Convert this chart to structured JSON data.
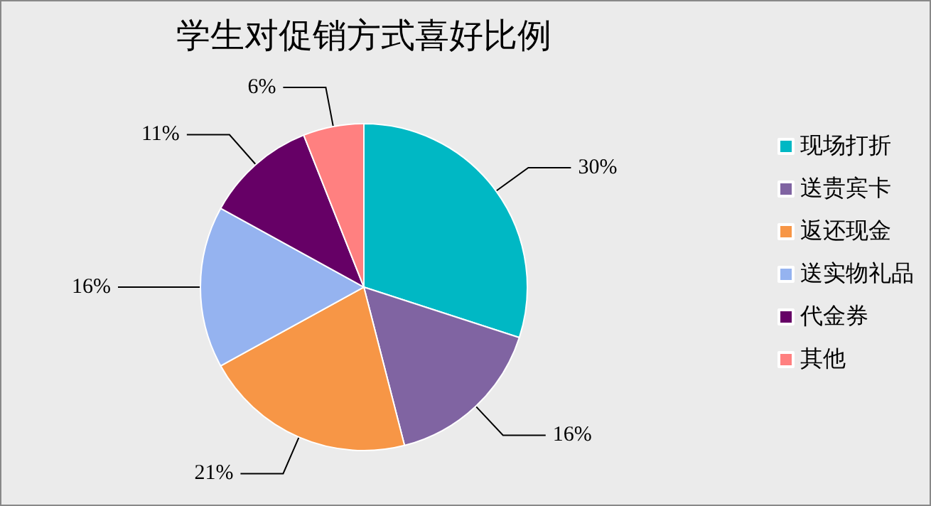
{
  "chart_data": {
    "type": "pie",
    "title": "学生对促销方式喜好比例",
    "categories": [
      "现场打折",
      "送贵宾卡",
      "返还现金",
      "送实物礼品",
      "代金券",
      "其他"
    ],
    "values": [
      30,
      16,
      21,
      16,
      11,
      6
    ],
    "value_labels": [
      "30%",
      "16%",
      "21%",
      "16%",
      "11%",
      "6%"
    ],
    "colors": [
      "#00b8c4",
      "#8064a2",
      "#f79646",
      "#95b3f0",
      "#660066",
      "#ff8080"
    ],
    "legend": "right"
  }
}
